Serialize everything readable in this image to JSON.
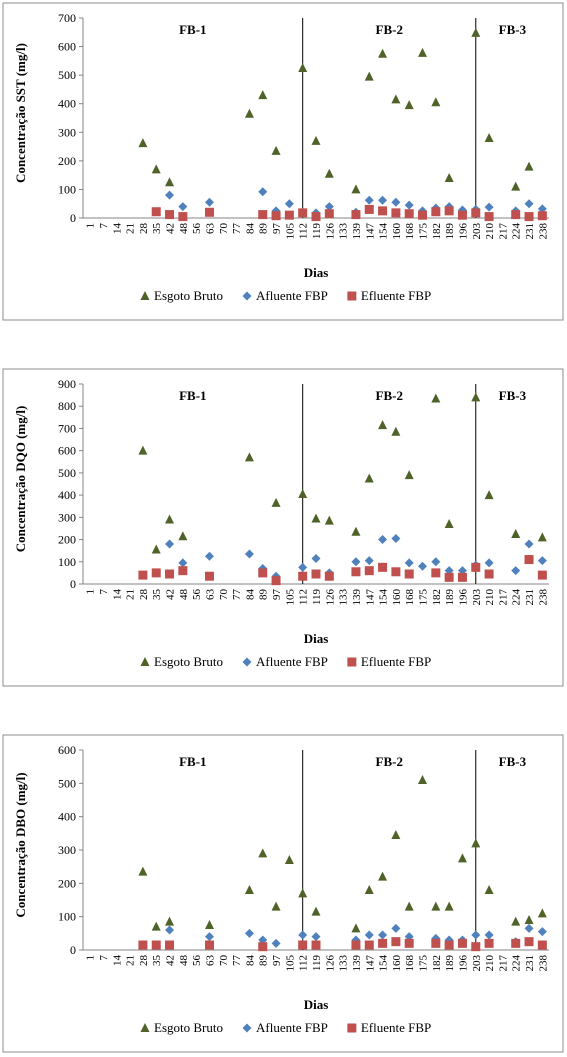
{
  "chart_data": [
    {
      "type": "scatter",
      "y_label": "Concentração SST (mg/l)",
      "x_label": "Dias",
      "categories": [
        "1",
        "7",
        "14",
        "21",
        "28",
        "35",
        "42",
        "48",
        "56",
        "63",
        "70",
        "77",
        "84",
        "89",
        "97",
        "105",
        "112",
        "119",
        "126",
        "133",
        "139",
        "147",
        "154",
        "160",
        "168",
        "175",
        "182",
        "189",
        "196",
        "203",
        "210",
        "217",
        "224",
        "231",
        "238"
      ],
      "ylim": [
        0,
        700
      ],
      "yticks": [
        0,
        100,
        200,
        300,
        400,
        500,
        600,
        700
      ],
      "phase_boundaries": [
        "112",
        "203"
      ],
      "phases": [
        "FB-1",
        "FB-2",
        "FB-3"
      ],
      "legend": "bottom",
      "series": [
        {
          "name": "Esgoto Bruto",
          "color": "#4f6228",
          "marker": "triangle",
          "values": [
            null,
            null,
            null,
            null,
            262,
            170,
            125,
            null,
            null,
            null,
            null,
            null,
            365,
            430,
            235,
            null,
            525,
            270,
            155,
            null,
            100,
            495,
            575,
            415,
            395,
            578,
            405,
            140,
            null,
            648,
            280,
            null,
            110,
            180,
            null
          ]
        },
        {
          "name": "Afluente FBP",
          "color": "#4f81bd",
          "marker": "diamond",
          "values": [
            null,
            null,
            null,
            null,
            null,
            null,
            80,
            40,
            null,
            55,
            null,
            null,
            null,
            92,
            25,
            50,
            20,
            18,
            40,
            null,
            20,
            62,
            62,
            55,
            45,
            25,
            35,
            40,
            28,
            30,
            38,
            null,
            25,
            50,
            32
          ]
        },
        {
          "name": "Efluente FBP",
          "color": "#c0504d",
          "marker": "square",
          "values": [
            null,
            null,
            null,
            null,
            null,
            22,
            12,
            5,
            null,
            20,
            null,
            null,
            null,
            12,
            8,
            10,
            18,
            5,
            15,
            null,
            12,
            30,
            25,
            18,
            15,
            10,
            22,
            25,
            10,
            18,
            5,
            null,
            12,
            5,
            8
          ]
        }
      ]
    },
    {
      "type": "scatter",
      "y_label": "Concentração DQO (mg/l)",
      "x_label": "Dias",
      "categories": [
        "1",
        "7",
        "14",
        "21",
        "28",
        "35",
        "42",
        "48",
        "56",
        "63",
        "70",
        "77",
        "84",
        "89",
        "97",
        "105",
        "112",
        "119",
        "126",
        "133",
        "139",
        "147",
        "154",
        "160",
        "168",
        "175",
        "182",
        "189",
        "196",
        "203",
        "210",
        "217",
        "224",
        "231",
        "238"
      ],
      "ylim": [
        0,
        900
      ],
      "yticks": [
        0,
        100,
        200,
        300,
        400,
        500,
        600,
        700,
        800,
        900
      ],
      "phase_boundaries": [
        "112",
        "203"
      ],
      "phases": [
        "FB-1",
        "FB-2",
        "FB-3"
      ],
      "legend": "bottom",
      "series": [
        {
          "name": "Esgoto Bruto",
          "color": "#4f6228",
          "marker": "triangle",
          "values": [
            null,
            null,
            null,
            null,
            600,
            155,
            290,
            215,
            null,
            null,
            null,
            null,
            570,
            null,
            365,
            null,
            405,
            295,
            285,
            null,
            235,
            475,
            715,
            685,
            490,
            null,
            835,
            270,
            null,
            840,
            400,
            null,
            225,
            null,
            210
          ]
        },
        {
          "name": "Afluente FBP",
          "color": "#4f81bd",
          "marker": "diamond",
          "values": [
            null,
            null,
            null,
            null,
            null,
            null,
            180,
            95,
            null,
            125,
            null,
            null,
            135,
            70,
            35,
            null,
            75,
            115,
            50,
            null,
            100,
            105,
            200,
            205,
            95,
            80,
            100,
            60,
            60,
            85,
            95,
            null,
            60,
            180,
            105
          ]
        },
        {
          "name": "Efluente FBP",
          "color": "#c0504d",
          "marker": "square",
          "values": [
            null,
            null,
            null,
            null,
            40,
            50,
            45,
            60,
            null,
            35,
            null,
            null,
            null,
            50,
            15,
            null,
            35,
            45,
            35,
            null,
            55,
            60,
            75,
            55,
            45,
            null,
            50,
            30,
            30,
            75,
            45,
            null,
            null,
            110,
            40
          ]
        }
      ]
    },
    {
      "type": "scatter",
      "y_label": "Concentração DBO (mg/l)",
      "x_label": "Dias",
      "categories": [
        "1",
        "7",
        "14",
        "21",
        "28",
        "35",
        "42",
        "48",
        "56",
        "63",
        "70",
        "77",
        "84",
        "89",
        "97",
        "105",
        "112",
        "119",
        "126",
        "133",
        "139",
        "147",
        "154",
        "160",
        "168",
        "175",
        "182",
        "189",
        "196",
        "203",
        "210",
        "217",
        "224",
        "231",
        "238"
      ],
      "ylim": [
        0,
        600
      ],
      "yticks": [
        0,
        100,
        200,
        300,
        400,
        500,
        600
      ],
      "phase_boundaries": [
        "112",
        "203"
      ],
      "phases": [
        "FB-1",
        "FB-2",
        "FB-3"
      ],
      "legend": "bottom",
      "series": [
        {
          "name": "Esgoto Bruto",
          "color": "#4f6228",
          "marker": "triangle",
          "values": [
            null,
            null,
            null,
            null,
            235,
            70,
            85,
            null,
            null,
            75,
            null,
            null,
            180,
            290,
            130,
            270,
            170,
            115,
            null,
            null,
            65,
            180,
            220,
            345,
            130,
            510,
            130,
            130,
            275,
            320,
            180,
            null,
            85,
            90,
            110
          ]
        },
        {
          "name": "Afluente FBP",
          "color": "#4f81bd",
          "marker": "diamond",
          "values": [
            null,
            null,
            null,
            null,
            null,
            null,
            60,
            null,
            null,
            40,
            null,
            null,
            50,
            30,
            20,
            null,
            45,
            40,
            null,
            null,
            30,
            45,
            45,
            65,
            40,
            null,
            35,
            30,
            30,
            45,
            45,
            null,
            25,
            65,
            55
          ]
        },
        {
          "name": "Efluente FBP",
          "color": "#c0504d",
          "marker": "square",
          "values": [
            null,
            null,
            null,
            null,
            15,
            15,
            15,
            null,
            null,
            15,
            null,
            null,
            null,
            10,
            null,
            null,
            15,
            15,
            null,
            null,
            15,
            15,
            20,
            25,
            20,
            null,
            20,
            15,
            20,
            10,
            20,
            null,
            20,
            25,
            15
          ]
        }
      ]
    }
  ]
}
